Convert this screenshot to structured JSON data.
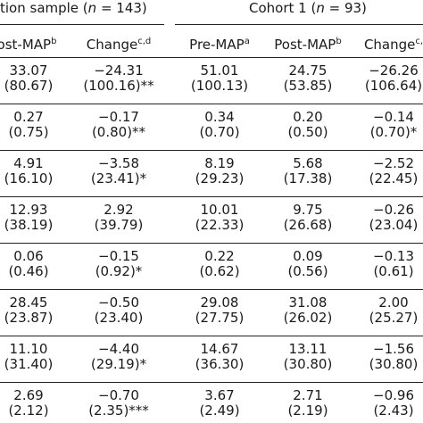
{
  "header": {
    "group1_text": "tion sample (",
    "group1_n_label": "n",
    "group1_n_value": " = 143)",
    "group2_text": "Cohort 1 (",
    "group2_n_label": "n",
    "group2_n_value": " = 93)"
  },
  "columns": [
    {
      "label": "ost-MAP",
      "sup": "b"
    },
    {
      "label": "Change",
      "sup": "c,d"
    },
    {
      "label": "Pre-MAP",
      "sup": "a"
    },
    {
      "label": "Post-MAP",
      "sup": "b"
    },
    {
      "label": "Change",
      "sup": "c,"
    }
  ],
  "rows": [
    [
      {
        "v": "33.07",
        "s": "(80.67)"
      },
      {
        "v": "−24.31",
        "s": "(100.16)**"
      },
      {
        "v": "51.01",
        "s": "(100.13)"
      },
      {
        "v": "24.75",
        "s": "(53.85)"
      },
      {
        "v": "−26.26",
        "s": "(106.64)"
      }
    ],
    [
      {
        "v": "0.27",
        "s": "(0.75)"
      },
      {
        "v": "−0.17",
        "s": "(0.80)**"
      },
      {
        "v": "0.34",
        "s": "(0.70)"
      },
      {
        "v": "0.20",
        "s": "(0.50)"
      },
      {
        "v": "−0.14",
        "s": "(0.70)*"
      }
    ],
    [
      {
        "v": "4.91",
        "s": "(16.10)"
      },
      {
        "v": "−3.58",
        "s": "(23.41)*"
      },
      {
        "v": "8.19",
        "s": "(29.23)"
      },
      {
        "v": "5.68",
        "s": "(17.38)"
      },
      {
        "v": "−2.52",
        "s": "(22.45)"
      }
    ],
    [
      {
        "v": "12.93",
        "s": "(38.19)"
      },
      {
        "v": "2.92",
        "s": "(39.79)"
      },
      {
        "v": "10.01",
        "s": "(22.33)"
      },
      {
        "v": "9.75",
        "s": "(26.68)"
      },
      {
        "v": "−0.26",
        "s": "(23.04)"
      }
    ],
    [
      {
        "v": "0.06",
        "s": "(0.46)"
      },
      {
        "v": "−0.15",
        "s": "(0.92)*"
      },
      {
        "v": "0.22",
        "s": "(0.62)"
      },
      {
        "v": "0.09",
        "s": "(0.56)"
      },
      {
        "v": "−0.13",
        "s": "(0.61)"
      }
    ],
    [
      {
        "v": "28.45",
        "s": "(23.87)"
      },
      {
        "v": "−0.50",
        "s": "(23.40)"
      },
      {
        "v": "29.08",
        "s": "(27.75)"
      },
      {
        "v": "31.08",
        "s": "(26.02)"
      },
      {
        "v": "2.00",
        "s": "(25.27)"
      }
    ],
    [
      {
        "v": "11.10",
        "s": "(31.40)"
      },
      {
        "v": "−4.40",
        "s": "(29.19)*"
      },
      {
        "v": "14.67",
        "s": "(36.30)"
      },
      {
        "v": "13.11",
        "s": "(30.80)"
      },
      {
        "v": "−1.56",
        "s": "(30.80)"
      }
    ],
    [
      {
        "v": "2.69",
        "s": "(2.12)"
      },
      {
        "v": "−0.70",
        "s": "(2.35)***"
      },
      {
        "v": "3.67",
        "s": "(2.49)"
      },
      {
        "v": "2.71",
        "s": "(2.19)"
      },
      {
        "v": "−0.96",
        "s": "(2.43)"
      }
    ]
  ]
}
